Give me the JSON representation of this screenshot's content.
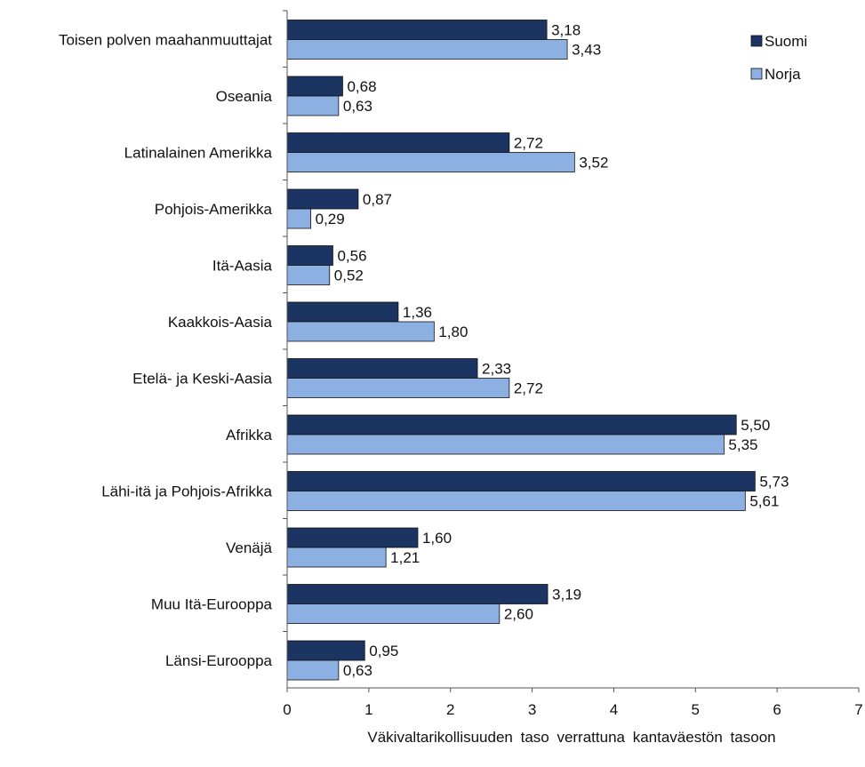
{
  "chart_data": {
    "type": "bar",
    "orientation": "horizontal",
    "categories": [
      "Toisen polven maahanmuuttajat",
      "Oseania",
      "Latinalainen Amerikka",
      "Pohjois-Amerikka",
      "Itä-Aasia",
      "Kaakkois-Aasia",
      "Etelä- ja Keski-Aasia",
      "Afrikka",
      "Lähi-itä ja Pohjois-Afrikka",
      "Venäjä",
      "Muu Itä-Eurooppa",
      "Länsi-Eurooppa"
    ],
    "series": [
      {
        "name": "Suomi",
        "color": "#1c3461",
        "values": [
          3.18,
          0.68,
          2.72,
          0.87,
          0.56,
          1.36,
          2.33,
          5.5,
          5.73,
          1.6,
          3.19,
          0.95
        ],
        "labels": [
          "3,18",
          "0,68",
          "2,72",
          "0,87",
          "0,56",
          "1,36",
          "2,33",
          "5,50",
          "5,73",
          "1,60",
          "3,19",
          "0,95"
        ]
      },
      {
        "name": "Norja",
        "color": "#8db0e3",
        "values": [
          3.43,
          0.63,
          3.52,
          0.29,
          0.52,
          1.8,
          2.72,
          5.35,
          5.61,
          1.21,
          2.6,
          0.63
        ],
        "labels": [
          "3,43",
          "0,63",
          "3,52",
          "0,29",
          "0,52",
          "1,80",
          "2,72",
          "5,35",
          "5,61",
          "1,21",
          "2,60",
          "0,63"
        ]
      }
    ],
    "title": "",
    "xlabel": "Väkivaltarikollisuuden taso verrattuna kantaväestön tasoon",
    "ylabel": "",
    "xlim": [
      0,
      7
    ],
    "xticks": [
      "0",
      "1",
      "2",
      "3",
      "4",
      "5",
      "6",
      "7"
    ],
    "grid": false,
    "legend": "top-right"
  }
}
